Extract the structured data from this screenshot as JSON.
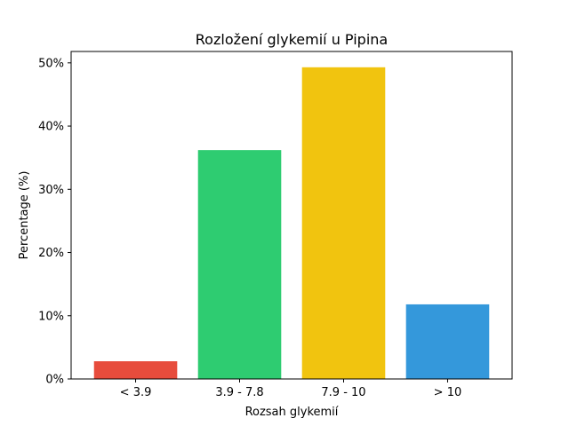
{
  "chart_data": {
    "type": "bar",
    "title": "Rozložení glykemií u  Pipina",
    "xlabel": "Rozsah glykemií",
    "ylabel": "Percentage (%)",
    "categories": [
      "< 3.9",
      "3.9 - 7.8",
      "7.9 - 10",
      "> 10"
    ],
    "values": [
      2.8,
      36.2,
      49.3,
      11.8
    ],
    "colors": [
      "#e74c3c",
      "#2ecc71",
      "#f1c40f",
      "#3498db"
    ],
    "ylim": [
      0,
      51.8
    ],
    "yticks": [
      0,
      10,
      20,
      30,
      40,
      50
    ],
    "ytick_labels": [
      "0%",
      "10%",
      "20%",
      "30%",
      "40%",
      "50%"
    ],
    "grid": false,
    "legend": "none"
  }
}
